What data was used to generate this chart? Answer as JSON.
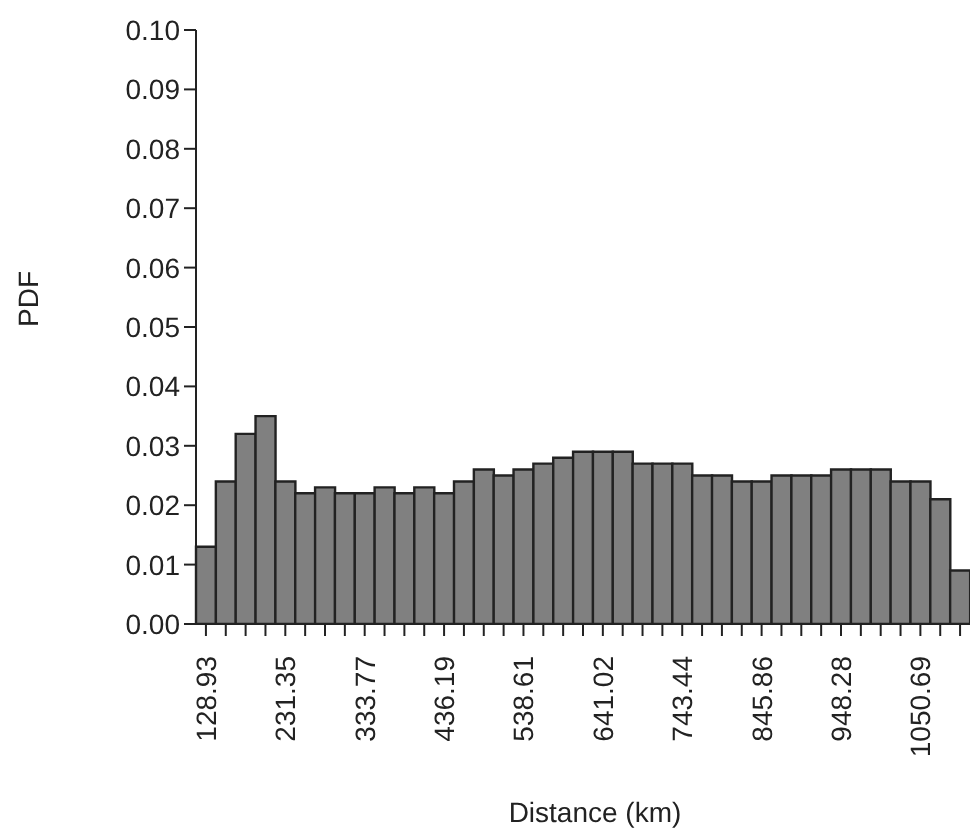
{
  "chart_data": {
    "type": "bar",
    "xlabel": "Distance (km)",
    "ylabel": "PDF",
    "categories": [
      "128.93",
      null,
      null,
      null,
      "231.35",
      null,
      null,
      null,
      "333.77",
      null,
      null,
      null,
      "436.19",
      null,
      null,
      null,
      "538.61",
      null,
      null,
      null,
      "641.02",
      null,
      null,
      null,
      "743.44",
      null,
      null,
      null,
      "845.86",
      null,
      null,
      null,
      "948.28",
      null,
      null,
      null,
      "1050.69",
      null,
      null
    ],
    "values": [
      0.013,
      0.024,
      0.032,
      0.035,
      0.024,
      0.022,
      0.023,
      0.022,
      0.022,
      0.023,
      0.022,
      0.023,
      0.022,
      0.024,
      0.026,
      0.025,
      0.026,
      0.027,
      0.028,
      0.029,
      0.029,
      0.029,
      0.027,
      0.027,
      0.027,
      0.025,
      0.025,
      0.024,
      0.024,
      0.025,
      0.025,
      0.025,
      0.026,
      0.026,
      0.026,
      0.024,
      0.024,
      0.021,
      0.009
    ],
    "color": "#808080",
    "ylim": [
      0,
      0.1
    ],
    "yticks": [
      {
        "value": 0,
        "label": "0.00"
      },
      {
        "value": 0.01,
        "label": "0.01"
      },
      {
        "value": 0.02,
        "label": "0.02"
      },
      {
        "value": 0.03,
        "label": "0.03"
      },
      {
        "value": 0.04,
        "label": "0.04"
      },
      {
        "value": 0.05,
        "label": "0.05"
      },
      {
        "value": 0.06,
        "label": "0.06"
      },
      {
        "value": 0.07,
        "label": "0.07"
      },
      {
        "value": 0.08,
        "label": "0.08"
      },
      {
        "value": 0.09,
        "label": "0.09"
      },
      {
        "value": 0.1,
        "label": "0.10"
      }
    ],
    "grid": false,
    "legend": false
  }
}
